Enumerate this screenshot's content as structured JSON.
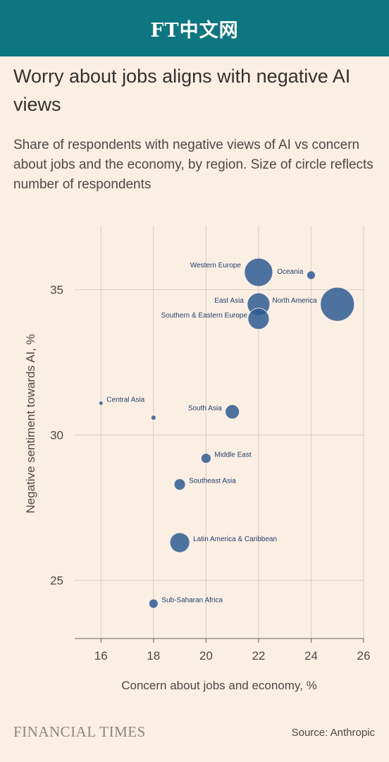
{
  "banner": {
    "logo_text": "FT中文网"
  },
  "footer": {
    "brand": "FINANCIAL TIMES",
    "source": "Source: Anthropic"
  },
  "chart_data": {
    "type": "scatter",
    "title": "Worry about jobs aligns with negative AI views",
    "subtitle": "Share of respondents with negative views of AI vs concern about jobs and the economy, by region. Size of circle reflects number of respondents",
    "xlabel": "Concern about jobs and economy, %",
    "ylabel": "Negative sentiment towards AI, %",
    "xlim": [
      15,
      26
    ],
    "ylim": [
      23,
      37.2
    ],
    "xticks": [
      16,
      18,
      20,
      22,
      24,
      26
    ],
    "yticks": [
      25,
      30,
      35
    ],
    "grid": true,
    "point_color": "#2e5c93",
    "points": [
      {
        "label": "Western Europe",
        "x": 22,
        "y": 35.6,
        "size": 400
      },
      {
        "label": "Oceania",
        "x": 24,
        "y": 35.5,
        "size": 36
      },
      {
        "label": "East Asia",
        "x": 22,
        "y": 34.5,
        "size": 256
      },
      {
        "label": "North America",
        "x": 25,
        "y": 34.5,
        "size": 576
      },
      {
        "label": "Southern & Eastern Europe",
        "x": 22,
        "y": 34.0,
        "size": 225
      },
      {
        "label": "Central Asia",
        "x": 16,
        "y": 31.1,
        "size": 9
      },
      {
        "label": "",
        "x": 18,
        "y": 30.6,
        "size": 12
      },
      {
        "label": "South Asia",
        "x": 21,
        "y": 30.8,
        "size": 100
      },
      {
        "label": "Middle East",
        "x": 20,
        "y": 29.2,
        "size": 49
      },
      {
        "label": "Southeast Asia",
        "x": 19,
        "y": 28.3,
        "size": 64
      },
      {
        "label": "Latin America & Caribbean",
        "x": 19,
        "y": 26.3,
        "size": 196
      },
      {
        "label": "Sub-Saharan Africa",
        "x": 18,
        "y": 24.2,
        "size": 42
      }
    ]
  }
}
